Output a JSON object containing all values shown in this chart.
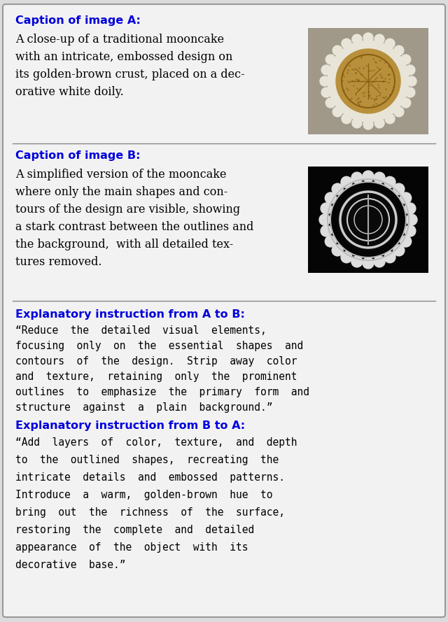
{
  "bg_color": "#dcdcdc",
  "panel_bg": "#f2f2f2",
  "border_color": "#999999",
  "title_color": "#0000dd",
  "text_color": "#000000",
  "divider_color": "#888888",
  "caption_a_title": "Caption of image A:",
  "caption_b_title": "Caption of image B:",
  "instr_ab_title": "Explanatory instruction from A to B:",
  "instr_ba_title": "Explanatory instruction from B to A:",
  "caption_a_lines": [
    "A close-up of a traditional mooncake",
    "with an intricate, embossed design on",
    "its golden-brown crust, placed on a dec-",
    "orative white doily."
  ],
  "caption_b_lines": [
    "A simplified version of the mooncake",
    "where only the main shapes and con-",
    "tours of the design are visible, showing",
    "a stark contrast between the outlines and",
    "the background,  with all detailed tex-",
    "tures removed."
  ],
  "instr_ab_lines": [
    "“Reduce  the  detailed  visual  elements,",
    "focusing  only  on  the  essential  shapes  and",
    "contours  of  the  design.  Strip  away  color",
    "and  texture,  retaining  only  the  prominent",
    "outlines  to  emphasize  the  primary  form  and",
    "structure  against  a  plain  background.”"
  ],
  "instr_ba_lines": [
    "“Add  layers  of  color,  texture,  and  depth",
    "to  the  outlined  shapes,  recreating  the",
    "intricate  details  and  embossed  patterns.",
    "Introduce  a  warm,  golden-brown  hue  to",
    "bring  out  the  richness  of  the  surface,",
    "restoring  the  complete  and  detailed",
    "appearance  of  the  object  with  its",
    "decorative  base.”"
  ],
  "title_fontsize": 11.5,
  "body_fontsize": 11.5,
  "mono_fontsize": 10.5,
  "figsize": [
    6.4,
    8.89
  ],
  "dpi": 100
}
